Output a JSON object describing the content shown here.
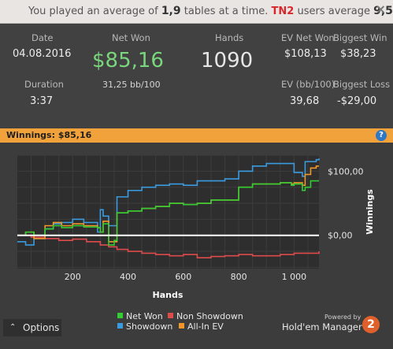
{
  "notice": {
    "prefix": "You played an average of",
    "avg_tables": "1,9",
    "middle": "tables at a time.",
    "site": "TN2",
    "suffix": "users average",
    "users_avg": "9,5",
    "end": ".",
    "close": "×"
  },
  "stats": {
    "date_label": "Date",
    "date": "04.08.2016",
    "net_won_label": "Net Won",
    "net_won": "$85,16",
    "bb100": "31,25 bb/100",
    "hands_label": "Hands",
    "hands": "1090",
    "ev_net_won_label": "EV Net Won",
    "ev_net_won": "$108,13",
    "biggest_win_label": "Biggest Win",
    "biggest_win": "$38,23",
    "duration_label": "Duration",
    "duration": "3:37",
    "ev_bb100_label": "EV (bb/100)",
    "ev_bb100": "39,68",
    "biggest_loss_label": "Biggest Loss",
    "biggest_loss": "-$29,00"
  },
  "banner": {
    "label": "Winnings:",
    "value": "$85,16",
    "help": "?"
  },
  "options": {
    "arrow": "⌃",
    "label": "Options"
  },
  "logo": {
    "powered": "Powered by",
    "name": "Hold'em Manager",
    "badge": "2"
  },
  "colors": {
    "net_won": "#33cc33",
    "non_showdown": "#dd4b4b",
    "showdown": "#3a9be0",
    "allin_ev": "#f0962a",
    "zero_line": "#ffffff",
    "banner": "#f2a23a",
    "green_value": "#7ad67d"
  },
  "chart_data": {
    "type": "line",
    "xlabel": "Hands",
    "ylabel": "Winnings",
    "xlim": [
      0,
      1090
    ],
    "ylim": [
      -52,
      125
    ],
    "x_ticks": [
      {
        "v": 200,
        "label": "200"
      },
      {
        "v": 400,
        "label": "400"
      },
      {
        "v": 600,
        "label": "600"
      },
      {
        "v": 800,
        "label": "800"
      },
      {
        "v": 1000,
        "label": "1 000"
      }
    ],
    "y_ticks": [
      {
        "v": 0,
        "label": "$0,00"
      },
      {
        "v": 100,
        "label": "$100,00"
      }
    ],
    "legend": [
      "Net Won",
      "Non Showdown",
      "Showdown",
      "All-In EV"
    ],
    "series": [
      {
        "name": "Net Won",
        "color": "#33cc33",
        "x": [
          0,
          30,
          60,
          100,
          130,
          160,
          200,
          240,
          290,
          300,
          310,
          330,
          350,
          360,
          400,
          450,
          500,
          550,
          600,
          650,
          700,
          750,
          790,
          800,
          850,
          900,
          950,
          990,
          1000,
          1030,
          1040,
          1060,
          1080,
          1090
        ],
        "y": [
          0,
          5,
          0,
          10,
          15,
          12,
          15,
          13,
          12,
          5,
          18,
          -15,
          -8,
          35,
          38,
          42,
          45,
          50,
          48,
          50,
          55,
          55,
          55,
          75,
          80,
          80,
          82,
          78,
          80,
          70,
          75,
          85,
          85,
          85
        ]
      },
      {
        "name": "Non Showdown",
        "color": "#dd4b4b",
        "x": [
          0,
          50,
          100,
          150,
          200,
          250,
          300,
          330,
          360,
          400,
          450,
          500,
          550,
          600,
          650,
          700,
          750,
          800,
          850,
          900,
          950,
          1000,
          1050,
          1090
        ],
        "y": [
          0,
          -3,
          -5,
          -8,
          -6,
          -10,
          -15,
          -18,
          -22,
          -25,
          -28,
          -30,
          -32,
          -30,
          -35,
          -33,
          -32,
          -30,
          -32,
          -32,
          -30,
          -28,
          -28,
          -25
        ]
      },
      {
        "name": "Showdown",
        "color": "#3a9be0",
        "x": [
          0,
          30,
          60,
          100,
          130,
          160,
          200,
          240,
          290,
          300,
          310,
          330,
          360,
          400,
          450,
          500,
          550,
          600,
          650,
          700,
          750,
          790,
          800,
          850,
          900,
          950,
          990,
          1000,
          1030,
          1040,
          1060,
          1080,
          1090
        ],
        "y": [
          -10,
          -15,
          -5,
          10,
          18,
          20,
          25,
          20,
          5,
          40,
          30,
          15,
          60,
          70,
          75,
          78,
          80,
          78,
          85,
          85,
          88,
          88,
          100,
          108,
          112,
          112,
          112,
          98,
          92,
          115,
          115,
          118,
          120
        ]
      },
      {
        "name": "All-In EV",
        "color": "#f0962a",
        "x": [
          0,
          30,
          60,
          100,
          130,
          160,
          200,
          240,
          290,
          300,
          310,
          330,
          360,
          400,
          450,
          500,
          550,
          600,
          650,
          700,
          750,
          790,
          800,
          850,
          900,
          950,
          990,
          1000,
          1030,
          1040,
          1060,
          1080,
          1090
        ],
        "y": [
          0,
          5,
          -5,
          15,
          20,
          15,
          18,
          15,
          12,
          5,
          22,
          -10,
          35,
          38,
          42,
          45,
          50,
          48,
          50,
          55,
          55,
          55,
          75,
          80,
          80,
          82,
          80,
          82,
          78,
          95,
          105,
          108,
          108
        ]
      }
    ],
    "zero_line": 0
  }
}
